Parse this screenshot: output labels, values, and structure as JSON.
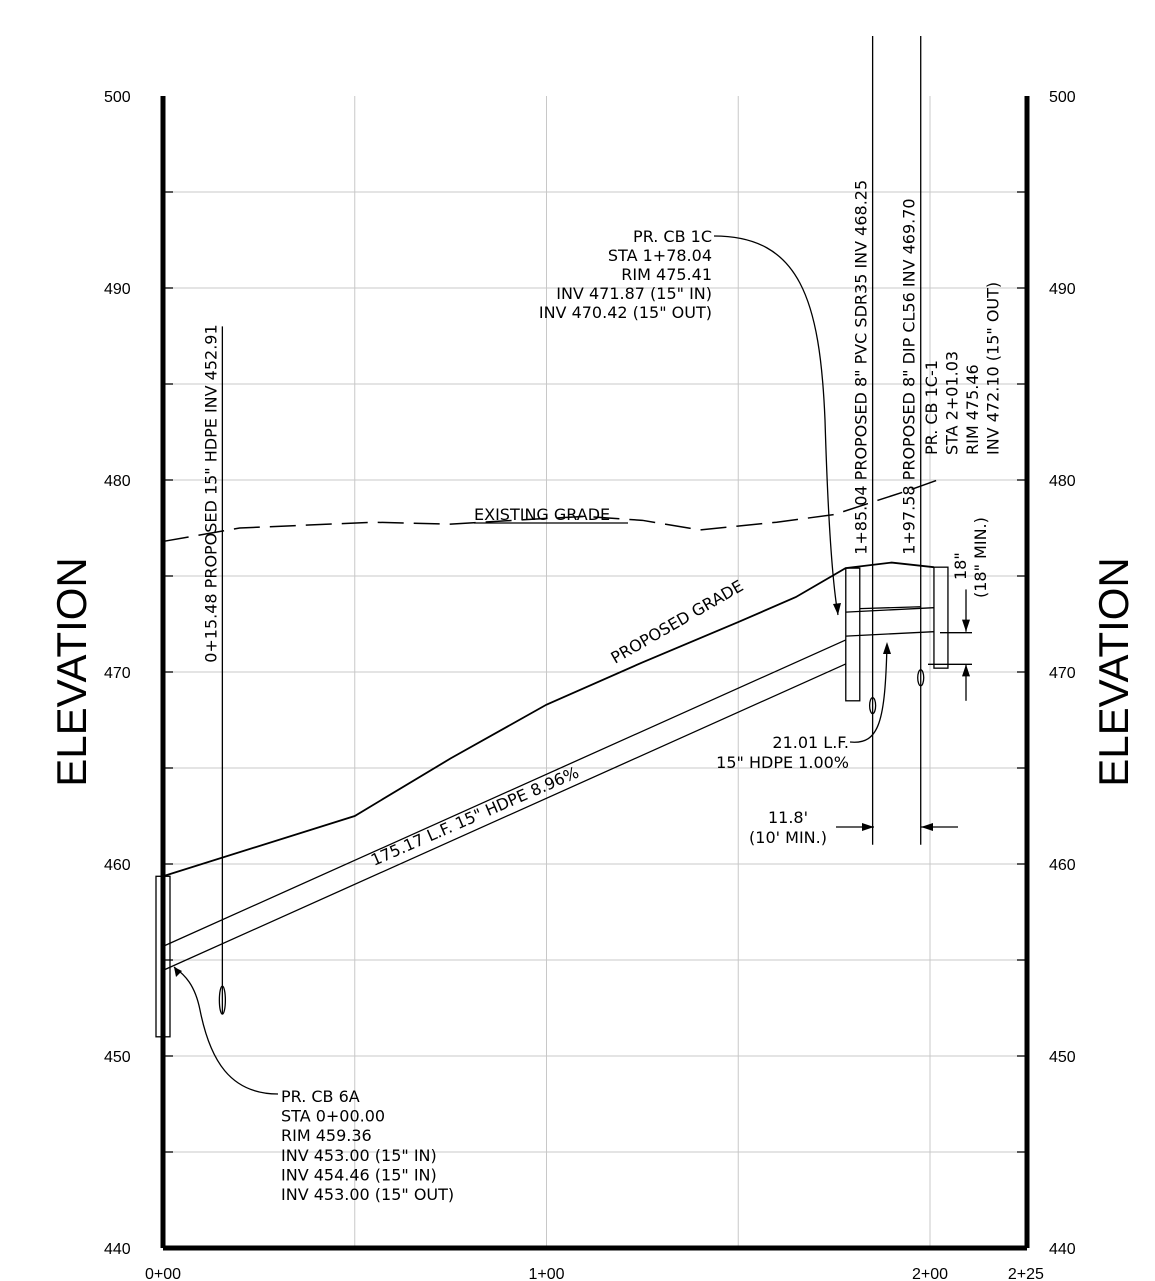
{
  "chart_data": {
    "type": "profile",
    "ylabel": "ELEVATION",
    "ylim": [
      440,
      500
    ],
    "xlim": [
      0,
      225
    ],
    "y_ticks": [
      "500",
      "490",
      "480",
      "470",
      "460",
      "450",
      "440"
    ],
    "x_ticks": [
      "0+00",
      "1+00",
      "2+00",
      "2+25"
    ],
    "grid": true,
    "existing_grade": {
      "label": "EXISTING GRADE",
      "points": [
        [
          0,
          476.8
        ],
        [
          20,
          477.5
        ],
        [
          55,
          477.8
        ],
        [
          75,
          477.7
        ],
        [
          100,
          478.0
        ],
        [
          110,
          478.1
        ],
        [
          125,
          477.9
        ],
        [
          140,
          477.4
        ],
        [
          160,
          477.8
        ],
        [
          175,
          478.2
        ],
        [
          195,
          479.5
        ],
        [
          202,
          480.0
        ]
      ]
    },
    "proposed_grade": {
      "label": "PROPOSED GRADE",
      "points": [
        [
          0,
          459.36
        ],
        [
          50,
          462.5
        ],
        [
          75,
          465.5
        ],
        [
          100,
          468.3
        ],
        [
          125,
          470.5
        ],
        [
          150,
          472.6
        ],
        [
          165,
          473.9
        ],
        [
          178,
          475.41
        ],
        [
          190,
          475.7
        ],
        [
          201,
          475.46
        ]
      ]
    },
    "pipes": [
      {
        "label": "175.17 L.F. 15\" HDPE 8.96%",
        "from": [
          0,
          454.46
        ],
        "to": [
          178.04,
          470.42
        ],
        "diameter_ft": 1.25
      },
      {
        "label_line1": "21.01 L.F.",
        "label_line2": "15\" HDPE 1.00%",
        "from": [
          178.04,
          471.87
        ],
        "to": [
          201.03,
          472.1
        ],
        "diameter_ft": 1.25
      }
    ],
    "crossings": [
      {
        "station": 15.48,
        "elevation": 452.91,
        "label": "0+15.48 PROPOSED 15\" HDPE INV 452.91"
      },
      {
        "station": 185.04,
        "elevation": 468.25,
        "label": "1+85.04 PROPOSED 8\" PVC SDR35 INV 468.25"
      },
      {
        "station": 197.58,
        "elevation": 469.7,
        "label": "1+97.58 PROPOSED 8\" DIP CL56 INV 469.70"
      }
    ],
    "structures": [
      {
        "station": 0.0,
        "rim": 459.36,
        "bottom": 451.0,
        "lines": [
          "PR. CB 6A",
          "STA 0+00.00",
          "RIM 459.36",
          "INV 453.00 (15\" IN)",
          "INV 454.46 (15\" IN)",
          "INV 453.00 (15\" OUT)"
        ]
      },
      {
        "station": 178.04,
        "rim": 475.41,
        "bottom": 468.5,
        "lines": [
          "PR. CB 1C",
          "STA 1+78.04",
          "RIM 475.41",
          "INV 471.87 (15\" IN)",
          "INV 470.42 (15\" OUT)"
        ]
      },
      {
        "station": 201.03,
        "rim": 475.46,
        "bottom": 470.2,
        "lines": [
          "PR. CB 1C-1",
          "STA 2+01.03",
          "RIM 475.46",
          "INV 472.10 (15\" OUT)"
        ]
      }
    ],
    "annotations": {
      "sep_h_line1": "11.8'",
      "sep_h_line2": "(10' MIN.)",
      "sep_v_line1": "18\"",
      "sep_v_line2": "(18\" MIN.)"
    }
  }
}
